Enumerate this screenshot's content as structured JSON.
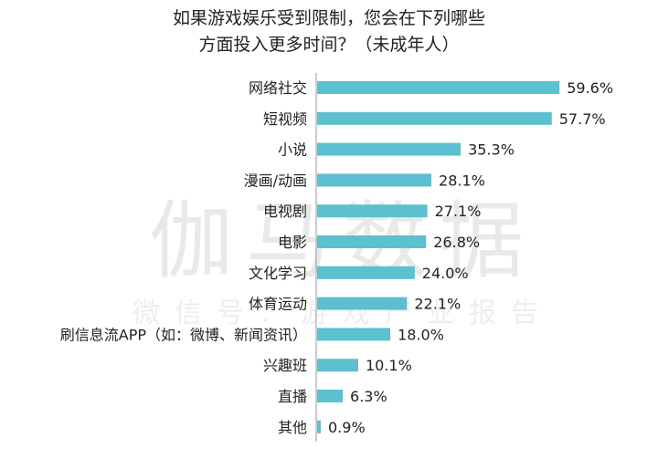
{
  "chart_data": {
    "type": "bar",
    "orientation": "horizontal",
    "title_lines": [
      "如果游戏娱乐受到限制，您会在下列哪些",
      "方面投入更多时间？（未成年人）"
    ],
    "categories": [
      "网络社交",
      "短视频",
      "小说",
      "漫画/动画",
      "电视剧",
      "电影",
      "文化学习",
      "体育运动",
      "刷信息流APP（如：微博、新闻资讯）",
      "兴趣班",
      "直播",
      "其他"
    ],
    "values": [
      59.6,
      57.7,
      35.3,
      28.1,
      27.1,
      26.8,
      24.0,
      22.1,
      18.0,
      10.1,
      6.3,
      0.9
    ],
    "value_labels": [
      "59.6%",
      "57.7%",
      "35.3%",
      "28.1%",
      "27.1%",
      "26.8%",
      "24.0%",
      "22.1%",
      "18.0%",
      "10.1%",
      "6.3%",
      "0.9%"
    ],
    "bar_color": "#5bc0cf",
    "axis_color": "#9a9a9a",
    "grid": false,
    "legend": "none"
  },
  "watermark": {
    "main": "伽马数据",
    "sub": "微信号：游戏产业报告"
  }
}
